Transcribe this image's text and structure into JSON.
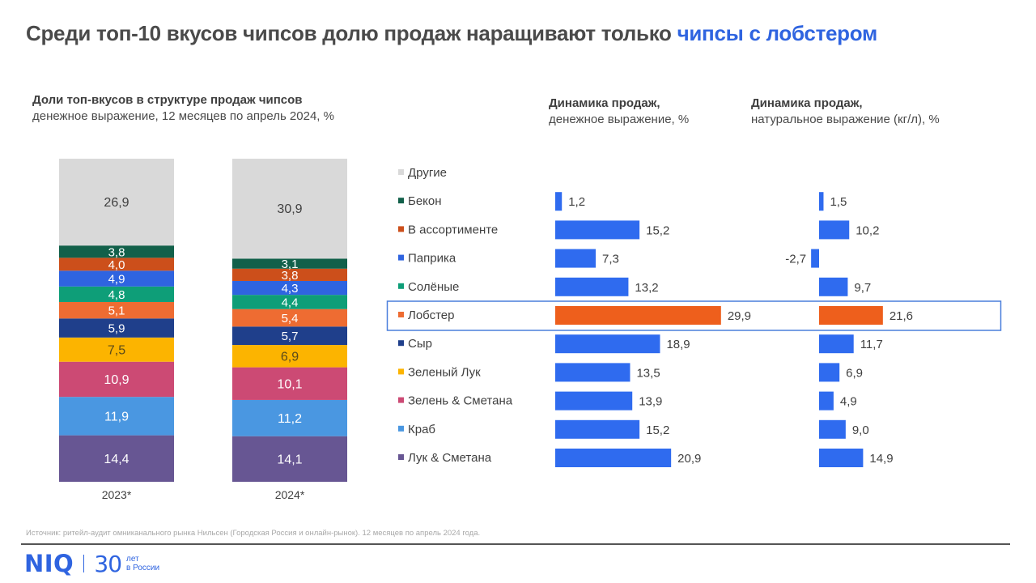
{
  "header": {
    "title_main": "Среди топ-10 вкусов чипсов долю продаж наращивают только ",
    "title_accent": "чипсы с лобстером"
  },
  "footer": {
    "source": "Источник: ритейл-аудит омниканального рынка Нильсен (Городская Россия и онлайн-рынок). 12 месяцев по апрель 2024 года.",
    "logo_text": "NIQ",
    "logo_years": "30",
    "logo_years_caption_1": "лет",
    "logo_years_caption_2": "в России"
  },
  "colors": {
    "accent": "#2f64e0",
    "highlight": "#ee5f1c",
    "bar_blue": "#2f6bef",
    "frame": "#4a7fdc"
  },
  "chart_data": [
    {
      "type": "bar",
      "stacked": true,
      "title": "Доли топ-вкусов в структуре продаж чипсов",
      "subtitle": "денежное выражение, 12 месяцев по апрель 2024, %",
      "categories": [
        "2023*",
        "2024*"
      ],
      "series": [
        {
          "name": "Лук & Сметана",
          "color": "#675693",
          "label_color": "#ffffff",
          "values": [
            14.4,
            14.1
          ],
          "labels": [
            "14,4",
            "14,1"
          ]
        },
        {
          "name": "Краб",
          "color": "#4a97e1",
          "label_color": "#ffffff",
          "values": [
            11.9,
            11.2
          ],
          "labels": [
            "11,9",
            "11,2"
          ]
        },
        {
          "name": "Зелень & Сметана",
          "color": "#cc4a74",
          "label_color": "#ffffff",
          "values": [
            10.9,
            10.1
          ],
          "labels": [
            "10,9",
            "10,1"
          ]
        },
        {
          "name": "Зеленый Лук",
          "color": "#fcb400",
          "label_color": "#5a4a1a",
          "values": [
            7.5,
            6.9
          ],
          "labels": [
            "7,5",
            "6,9"
          ]
        },
        {
          "name": "Сыр",
          "color": "#1f3f8b",
          "label_color": "#ffffff",
          "values": [
            5.9,
            5.7
          ],
          "labels": [
            "5,9",
            "5,7"
          ]
        },
        {
          "name": "Лобстер",
          "color": "#ee6c32",
          "label_color": "#ffffff",
          "values": [
            5.1,
            5.4
          ],
          "labels": [
            "5,1",
            "5,4"
          ]
        },
        {
          "name": "Солёные",
          "color": "#0e9e78",
          "label_color": "#ffffff",
          "values": [
            4.8,
            4.4
          ],
          "labels": [
            "4,8",
            "4,4"
          ]
        },
        {
          "name": "Паприка",
          "color": "#2f64e0",
          "label_color": "#ffffff",
          "values": [
            4.9,
            4.3
          ],
          "labels": [
            "4,9",
            "4,3"
          ]
        },
        {
          "name": "В ассортименте",
          "color": "#cc4f1b",
          "label_color": "#ffffff",
          "values": [
            4.0,
            3.8
          ],
          "labels": [
            "4,0",
            "3,8"
          ]
        },
        {
          "name": "Бекон",
          "color": "#12604a",
          "label_color": "#ffffff",
          "values": [
            3.8,
            3.1
          ],
          "labels": [
            "3,8",
            "3,1"
          ]
        },
        {
          "name": "Другие",
          "color": "#d9d9d9",
          "label_color": "#404040",
          "values": [
            26.9,
            30.9
          ],
          "labels": [
            "26,9",
            "30,9"
          ]
        }
      ],
      "ylim": [
        0,
        100
      ],
      "grid": false
    },
    {
      "type": "bar",
      "orientation": "horizontal",
      "title": "Динамика продаж,",
      "subtitle": "денежное выражение, %",
      "categories": [
        "Бекон",
        "В ассортименте",
        "Паприка",
        "Солёные",
        "Лобстер",
        "Сыр",
        "Зеленый Лук",
        "Зелень & Сметана",
        "Краб",
        "Лук & Сметана"
      ],
      "values": [
        1.2,
        15.2,
        7.3,
        13.2,
        29.9,
        18.9,
        13.5,
        13.9,
        15.2,
        20.9
      ],
      "labels": [
        "1,2",
        "15,2",
        "7,3",
        "13,2",
        "29,9",
        "18,9",
        "13,5",
        "13,9",
        "15,2",
        "20,9"
      ],
      "highlight": "Лобстер",
      "grid": false
    },
    {
      "type": "bar",
      "orientation": "horizontal",
      "title": "Динамика продаж,",
      "subtitle": "натуральное выражение (кг/л), %",
      "categories": [
        "Бекон",
        "В ассортименте",
        "Паприка",
        "Солёные",
        "Лобстер",
        "Сыр",
        "Зеленый Лук",
        "Зелень & Сметана",
        "Краб",
        "Лук & Сметана"
      ],
      "values": [
        1.5,
        10.2,
        -2.7,
        9.7,
        21.6,
        11.7,
        6.9,
        4.9,
        9.0,
        14.9
      ],
      "labels": [
        "1,5",
        "10,2",
        "-2,7",
        "9,7",
        "21,6",
        "11,7",
        "6,9",
        "4,9",
        "9,0",
        "14,9"
      ],
      "highlight": "Лобстер",
      "grid": false
    }
  ],
  "legend": {
    "placement": "left-of-bars",
    "items": [
      {
        "name": "Другие",
        "color": "#d9d9d9"
      },
      {
        "name": "Бекон",
        "color": "#12604a"
      },
      {
        "name": "В ассортименте",
        "color": "#cc4f1b"
      },
      {
        "name": "Паприка",
        "color": "#2f64e0"
      },
      {
        "name": "Солёные",
        "color": "#0e9e78"
      },
      {
        "name": "Лобстер",
        "color": "#ee6c32"
      },
      {
        "name": "Сыр",
        "color": "#1f3f8b"
      },
      {
        "name": "Зеленый Лук",
        "color": "#fcb400"
      },
      {
        "name": "Зелень & Сметана",
        "color": "#cc4a74"
      },
      {
        "name": "Краб",
        "color": "#4a97e1"
      },
      {
        "name": "Лук & Сметана",
        "color": "#675693"
      }
    ]
  }
}
